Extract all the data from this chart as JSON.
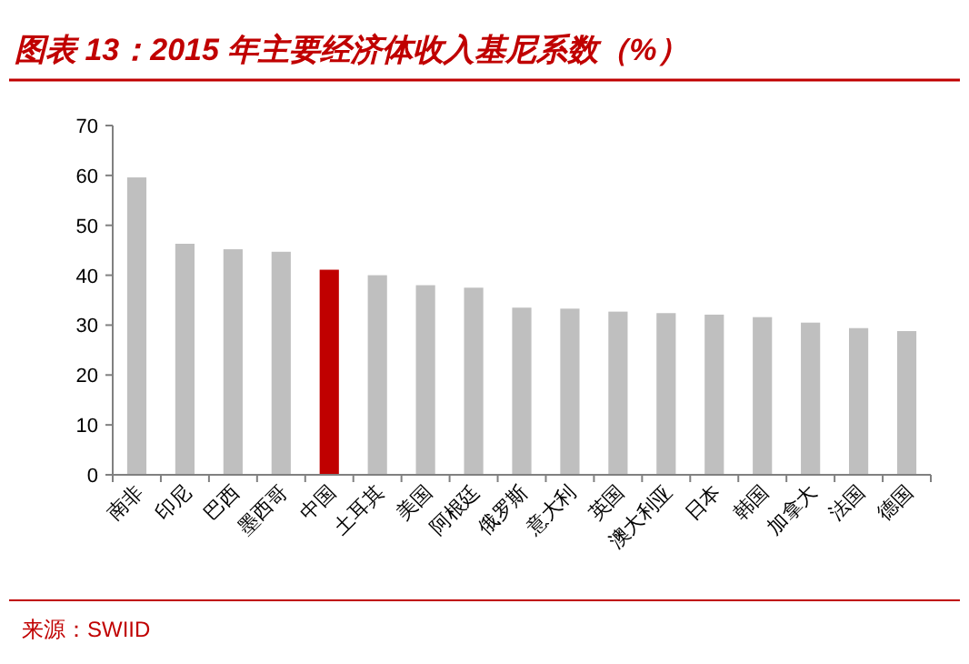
{
  "chart_data": {
    "type": "bar",
    "title": "图表 13：2015 年主要经济体收入基尼系数（%）",
    "categories": [
      "南非",
      "印尼",
      "巴西",
      "墨西哥",
      "中国",
      "土耳其",
      "美国",
      "阿根廷",
      "俄罗斯",
      "意大利",
      "英国",
      "澳大利亚",
      "日本",
      "韩国",
      "加拿大",
      "法国",
      "德国"
    ],
    "values": [
      59.6,
      46.3,
      45.2,
      44.7,
      41.1,
      40.0,
      38.0,
      37.5,
      33.5,
      33.3,
      32.7,
      32.4,
      32.1,
      31.6,
      30.5,
      29.4,
      28.8
    ],
    "colors": [
      "#bfbfbf",
      "#bfbfbf",
      "#bfbfbf",
      "#bfbfbf",
      "#c00000",
      "#bfbfbf",
      "#bfbfbf",
      "#bfbfbf",
      "#bfbfbf",
      "#bfbfbf",
      "#bfbfbf",
      "#bfbfbf",
      "#bfbfbf",
      "#bfbfbf",
      "#bfbfbf",
      "#bfbfbf",
      "#bfbfbf"
    ],
    "ylim": [
      0,
      70
    ],
    "yticks": [
      0,
      10,
      20,
      30,
      40,
      50,
      60,
      70
    ],
    "grid": false,
    "annotations": [
      "来源：SWIID"
    ]
  }
}
